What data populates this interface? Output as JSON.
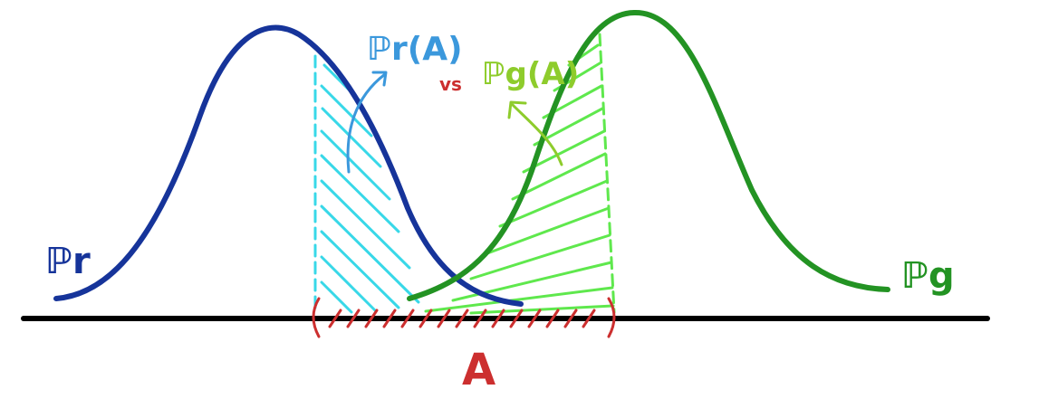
{
  "labels": {
    "pr_curve": "ℙr",
    "pg_curve": "ℙg",
    "pr_of_a": "ℙr(A)",
    "pg_of_a": "ℙg(A)",
    "versus": "vs",
    "set_a": "A"
  },
  "colors": {
    "background": "#ffffff",
    "axis": "#000000",
    "pr_curve": "#16349a",
    "pr_fill": "#38d8e8",
    "pr_label": "#3b98dc",
    "pg_curve": "#239323",
    "pg_fill": "#5fe84d",
    "pg_label": "#8ecc2c",
    "set_a": "#cc2f2f",
    "versus": "#cc2f2f"
  },
  "icons": {
    "pr_pointer": "curved-arrow-icon",
    "pg_pointer": "curved-arrow-icon"
  }
}
